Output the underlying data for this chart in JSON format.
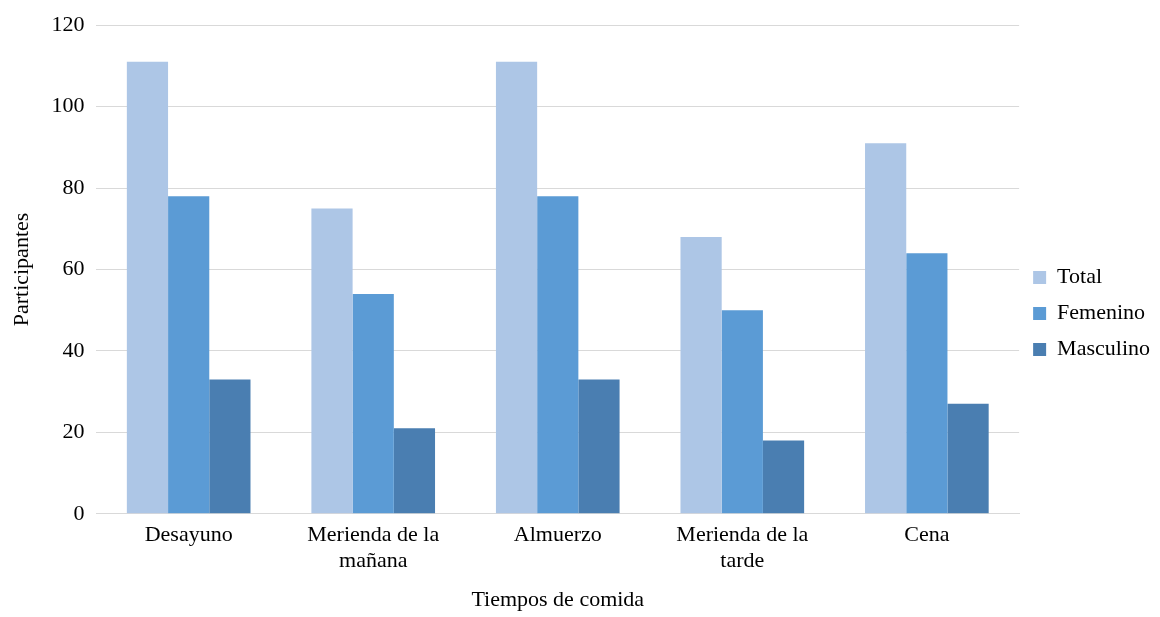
{
  "chart_data": {
    "type": "bar",
    "xlabel": "Tiempos de comida",
    "ylabel": "Participantes",
    "categories": [
      "Desayuno",
      "Merienda de la mañana",
      "Almuerzo",
      "Merienda de la tarde",
      "Cena"
    ],
    "series": [
      {
        "name": "Total",
        "color": "#adc6e6",
        "values": [
          111,
          75,
          111,
          68,
          91
        ]
      },
      {
        "name": "Femenino",
        "color": "#5b9bd5",
        "values": [
          78,
          54,
          78,
          50,
          64
        ]
      },
      {
        "name": "Masculino",
        "color": "#4a7eb1",
        "values": [
          33,
          21,
          33,
          18,
          27
        ]
      }
    ],
    "ylim": [
      0,
      120
    ],
    "yticks": [
      0,
      20,
      40,
      60,
      80,
      100,
      120
    ],
    "grid": "y",
    "legend": "right"
  }
}
